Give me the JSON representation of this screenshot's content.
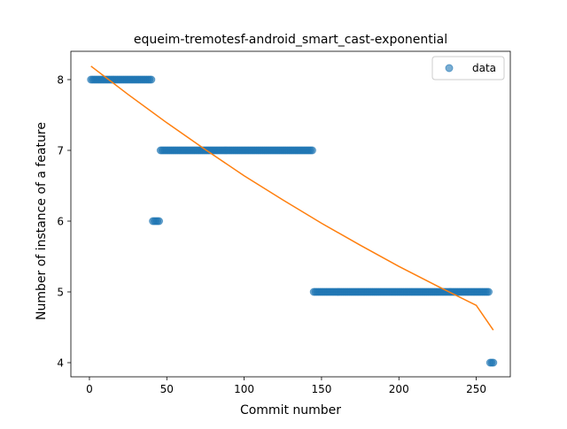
{
  "chart_data": {
    "type": "scatter",
    "title": "equeim-tremotesf-android_smart_cast-exponential",
    "xlabel": "Commit number",
    "ylabel": "Number of instance of a feature",
    "xlim": [
      -12,
      272
    ],
    "ylim": [
      3.8,
      8.4
    ],
    "xticks": [
      0,
      50,
      100,
      150,
      200,
      250
    ],
    "yticks": [
      4,
      5,
      6,
      7,
      8
    ],
    "grid": false,
    "legend": {
      "placement": "top-right",
      "entries": [
        "data"
      ]
    },
    "series": [
      {
        "name": "data",
        "kind": "points",
        "color": "#1f77b4",
        "segments": [
          {
            "x_start": 1,
            "x_end": 40,
            "y": 8
          },
          {
            "x_start": 41,
            "x_end": 45,
            "y": 6
          },
          {
            "x_start": 46,
            "x_end": 144,
            "y": 7
          },
          {
            "x_start": 145,
            "x_end": 258,
            "y": 5
          },
          {
            "x_start": 259,
            "x_end": 261,
            "y": 4
          }
        ]
      },
      {
        "name": "",
        "kind": "line",
        "color": "#ff7f0e",
        "x": [
          1,
          25,
          50,
          75,
          100,
          125,
          150,
          175,
          200,
          225,
          250,
          261
        ],
        "y": [
          8.19,
          7.79,
          7.39,
          7.01,
          6.64,
          6.3,
          5.97,
          5.66,
          5.36,
          5.08,
          4.81,
          4.46
        ]
      }
    ]
  }
}
